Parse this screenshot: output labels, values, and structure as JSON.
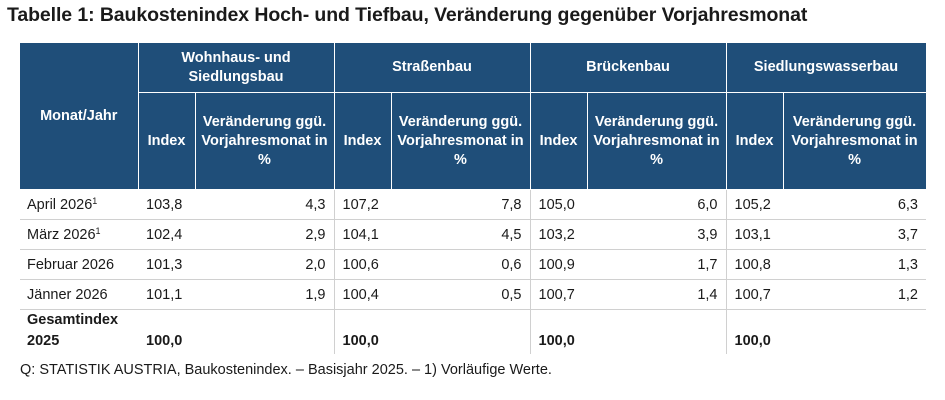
{
  "title": "Tabelle 1: Baukostenindex Hoch- und Tiefbau, Veränderung gegenüber Vorjahresmonat",
  "header": {
    "month_col": "Monat/Jahr",
    "groups": [
      "Wohnhaus- und Siedlungsbau",
      "Straßenbau",
      "Brückenbau",
      "Siedlungswasserbau"
    ],
    "index_label": "Index",
    "change_label": "Veränderung ggü. Vorjahresmonat in %"
  },
  "rows": [
    {
      "month": "April 2026",
      "sup": "1",
      "values": [
        "103,8",
        "4,3",
        "107,2",
        "7,8",
        "105,0",
        "6,0",
        "105,2",
        "6,3"
      ]
    },
    {
      "month": "März 2026",
      "sup": "1",
      "values": [
        "102,4",
        "2,9",
        "104,1",
        "4,5",
        "103,2",
        "3,9",
        "103,1",
        "3,7"
      ]
    },
    {
      "month": "Februar 2026",
      "sup": "",
      "values": [
        "101,3",
        "2,0",
        "100,6",
        "0,6",
        "100,9",
        "1,7",
        "100,8",
        "1,3"
      ]
    },
    {
      "month": "Jänner 2026",
      "sup": "",
      "values": [
        "101,1",
        "1,9",
        "100,4",
        "0,5",
        "100,7",
        "1,4",
        "100,7",
        "1,2"
      ]
    }
  ],
  "total": {
    "label": "Gesamtindex 2025",
    "values": [
      "100,0",
      "100,0",
      "100,0",
      "100,0"
    ]
  },
  "footnote": "Q: STATISTIK AUSTRIA, Baukostenindex. – Basisjahr 2025. – 1) Vorläufige Werte."
}
